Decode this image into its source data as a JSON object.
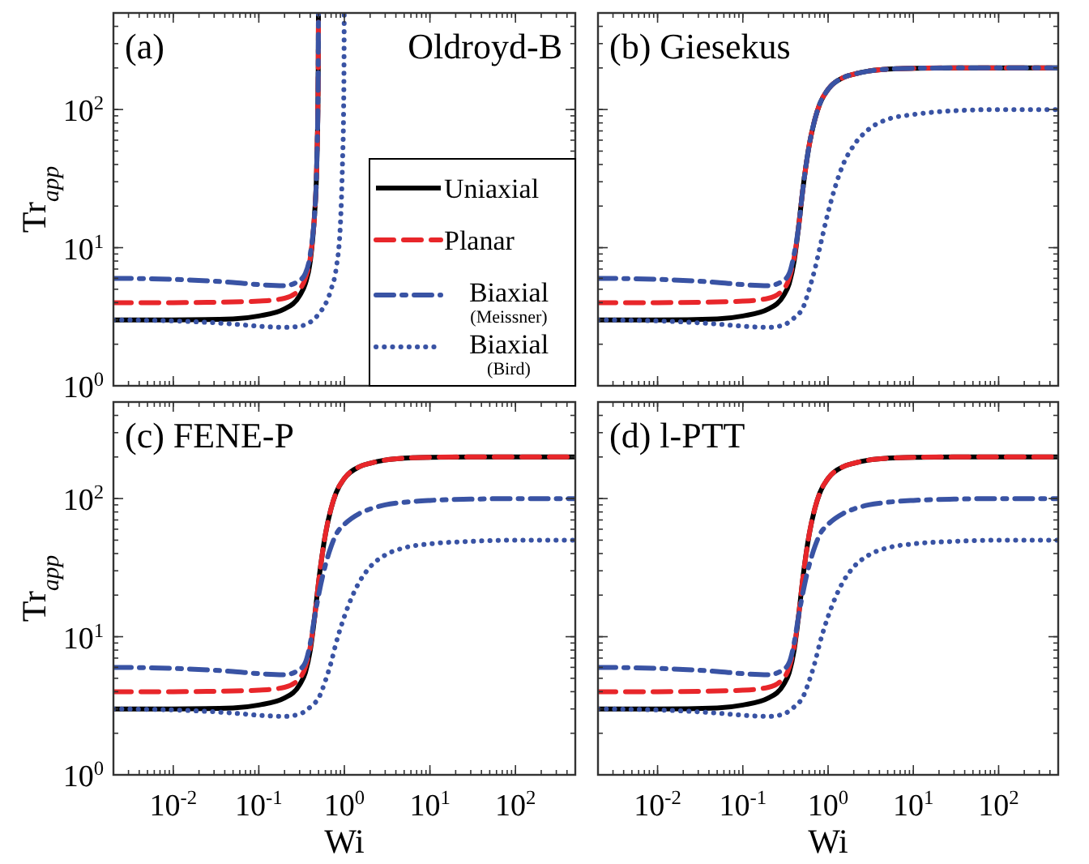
{
  "chart_data": [
    {
      "type": "line",
      "title": "(a)",
      "annotations": [
        "Oldroyd-B"
      ],
      "ylabel": "Tr$_{app}$",
      "log": "xy",
      "xlim": [
        0.002,
        500
      ],
      "ylim": [
        1,
        500
      ],
      "tick_labels": "y",
      "legend": "bottom right",
      "xticks": [
        {
          "value": 0.01,
          "label": null
        },
        {
          "value": 0.1,
          "label": null
        },
        {
          "value": 1,
          "label": null
        },
        {
          "value": 10,
          "label": null
        },
        {
          "value": 100,
          "label": null
        }
      ],
      "yticks": [
        {
          "value": 1,
          "label": "10$^{0}$"
        },
        {
          "value": 10,
          "label": "10$^{1}$"
        },
        {
          "value": 100,
          "label": "10$^{2}$"
        }
      ],
      "series": [
        {
          "name": "Uniaxial",
          "color": "#000000",
          "line_style": "solid",
          "x": [
            0.002,
            0.01,
            0.05,
            0.1,
            0.2,
            0.3,
            0.35,
            0.4,
            0.45,
            0.47,
            0.48,
            0.49,
            0.495,
            0.498
          ],
          "values": [
            3,
            3,
            3.05,
            3.2,
            3.6,
            4.5,
            5.5,
            8,
            18,
            30,
            50,
            100,
            200,
            500
          ]
        },
        {
          "name": "Planar",
          "color": "#e8262a",
          "line_style": "dashed",
          "x": [
            0.002,
            0.01,
            0.05,
            0.1,
            0.2,
            0.3,
            0.35,
            0.4,
            0.45,
            0.47,
            0.48,
            0.49,
            0.495,
            0.498
          ],
          "values": [
            4,
            4,
            4.05,
            4.1,
            4.3,
            5,
            6,
            8.5,
            18,
            30,
            50,
            100,
            200,
            500
          ]
        },
        {
          "name": "Biaxial (Meissner)",
          "color": "#3953a4",
          "line_style": "dashdot",
          "x": [
            0.002,
            0.01,
            0.05,
            0.1,
            0.2,
            0.3,
            0.35,
            0.4,
            0.45,
            0.47,
            0.48,
            0.49,
            0.495,
            0.498
          ],
          "values": [
            6,
            5.9,
            5.6,
            5.4,
            5.3,
            5.8,
            6.5,
            9,
            18,
            30,
            50,
            100,
            200,
            500
          ]
        },
        {
          "name": "Biaxial (Bird)",
          "color": "#3953a4",
          "line_style": "dotted",
          "x": [
            0.002,
            0.01,
            0.05,
            0.1,
            0.2,
            0.3,
            0.5,
            0.7,
            0.8,
            0.9,
            0.95,
            0.98,
            0.99,
            0.996
          ],
          "values": [
            3,
            2.95,
            2.8,
            2.7,
            2.65,
            2.7,
            3.3,
            5,
            7,
            15,
            40,
            100,
            200,
            500
          ]
        }
      ]
    },
    {
      "type": "line",
      "title": "(b) Giesekus",
      "log": "xy",
      "xlim": [
        0.002,
        500
      ],
      "ylim": [
        1,
        500
      ],
      "tick_labels": false,
      "xticks": [
        {
          "value": 0.01,
          "label": null
        },
        {
          "value": 0.1,
          "label": null
        },
        {
          "value": 1,
          "label": null
        },
        {
          "value": 10,
          "label": null
        },
        {
          "value": 100,
          "label": null
        }
      ],
      "yticks": [
        {
          "value": 1,
          "label": null
        },
        {
          "value": 10,
          "label": null
        },
        {
          "value": 100,
          "label": null
        }
      ],
      "series": [
        {
          "color": "#000000",
          "line_style": "solid",
          "x": [
            0.002,
            0.01,
            0.05,
            0.1,
            0.2,
            0.3,
            0.35,
            0.4,
            0.45,
            0.5,
            0.6,
            0.7,
            0.8,
            1,
            1.5,
            2,
            3,
            5,
            10,
            30,
            100,
            500
          ],
          "values": [
            3,
            3,
            3.05,
            3.2,
            3.6,
            4.5,
            5.5,
            8,
            14,
            25,
            55,
            85,
            110,
            140,
            170,
            180,
            190,
            196,
            199,
            200,
            200,
            200
          ]
        },
        {
          "color": "#e8262a",
          "line_style": "dashed",
          "x": [
            0.002,
            0.01,
            0.05,
            0.1,
            0.2,
            0.3,
            0.35,
            0.4,
            0.45,
            0.5,
            0.6,
            0.7,
            0.8,
            1,
            1.5,
            2,
            3,
            5,
            10,
            30,
            100,
            500
          ],
          "values": [
            4,
            4,
            4.05,
            4.1,
            4.3,
            5,
            6,
            8.5,
            14,
            25,
            55,
            85,
            110,
            140,
            170,
            180,
            190,
            196,
            199,
            200,
            200,
            200
          ]
        },
        {
          "color": "#3953a4",
          "line_style": "dashdot",
          "x": [
            0.002,
            0.01,
            0.05,
            0.1,
            0.2,
            0.3,
            0.35,
            0.4,
            0.45,
            0.5,
            0.6,
            0.7,
            0.8,
            1,
            1.5,
            2,
            3,
            5,
            10,
            30,
            100,
            500
          ],
          "values": [
            6,
            5.9,
            5.6,
            5.4,
            5.3,
            5.8,
            6.5,
            9,
            14,
            25,
            55,
            85,
            110,
            140,
            170,
            180,
            190,
            196,
            199,
            200,
            200,
            200
          ]
        },
        {
          "color": "#3953a4",
          "line_style": "dotted",
          "x": [
            0.002,
            0.01,
            0.05,
            0.1,
            0.2,
            0.3,
            0.35,
            0.4,
            0.45,
            0.5,
            0.6,
            0.7,
            0.8,
            1,
            1.5,
            2,
            3,
            5,
            10,
            30,
            100,
            500
          ],
          "values": [
            3,
            2.95,
            2.8,
            2.7,
            2.65,
            2.75,
            2.9,
            3.1,
            3.3,
            3.6,
            5,
            7,
            10,
            18,
            40,
            55,
            72,
            85,
            92,
            98,
            100,
            100
          ]
        }
      ]
    },
    {
      "type": "line",
      "title": "(c) FENE-P",
      "xlabel": "Wi",
      "ylabel": "Tr$_{app}$",
      "log": "xy",
      "xlim": [
        0.002,
        500
      ],
      "ylim": [
        1,
        500
      ],
      "xticks": [
        {
          "value": 0.01,
          "label": "10$^{-2}$"
        },
        {
          "value": 0.1,
          "label": "10$^{-1}$"
        },
        {
          "value": 1,
          "label": "10$^{0}$"
        },
        {
          "value": 10,
          "label": "10$^{1}$"
        },
        {
          "value": 100,
          "label": "10$^{2}$"
        }
      ],
      "yticks": [
        {
          "value": 1,
          "label": "10$^{0}$"
        },
        {
          "value": 10,
          "label": "10$^{1}$"
        },
        {
          "value": 100,
          "label": "10$^{2}$"
        }
      ],
      "series": [
        {
          "color": "#000000",
          "line_style": "solid",
          "x": [
            0.002,
            0.01,
            0.05,
            0.1,
            0.2,
            0.3,
            0.35,
            0.4,
            0.45,
            0.5,
            0.6,
            0.7,
            0.8,
            1,
            1.5,
            2,
            3,
            5,
            10,
            30,
            100,
            500
          ],
          "values": [
            3,
            3,
            3.05,
            3.2,
            3.6,
            4.5,
            5.5,
            8,
            14,
            25,
            55,
            85,
            110,
            140,
            170,
            180,
            190,
            196,
            199,
            200,
            200,
            200
          ]
        },
        {
          "color": "#e8262a",
          "line_style": "dashed",
          "x": [
            0.002,
            0.01,
            0.05,
            0.1,
            0.2,
            0.3,
            0.35,
            0.4,
            0.45,
            0.5,
            0.6,
            0.7,
            0.8,
            1,
            1.5,
            2,
            3,
            5,
            10,
            30,
            100,
            500
          ],
          "values": [
            4,
            4,
            4.05,
            4.1,
            4.3,
            5,
            6,
            8.5,
            14,
            25,
            55,
            85,
            110,
            140,
            170,
            180,
            190,
            196,
            199,
            200,
            200,
            200
          ]
        },
        {
          "color": "#3953a4",
          "line_style": "dashdot",
          "x": [
            0.002,
            0.01,
            0.05,
            0.1,
            0.2,
            0.3,
            0.35,
            0.4,
            0.45,
            0.5,
            0.6,
            0.7,
            0.8,
            1,
            1.5,
            2,
            3,
            5,
            10,
            30,
            100,
            500
          ],
          "values": [
            6,
            5.9,
            5.6,
            5.4,
            5.3,
            5.8,
            6.5,
            9,
            14,
            20,
            33,
            45,
            55,
            65,
            78,
            84,
            90,
            94,
            97,
            99,
            100,
            100
          ]
        },
        {
          "color": "#3953a4",
          "line_style": "dotted",
          "x": [
            0.002,
            0.01,
            0.05,
            0.1,
            0.2,
            0.3,
            0.35,
            0.4,
            0.45,
            0.5,
            0.6,
            0.7,
            0.8,
            1,
            1.5,
            2,
            3,
            5,
            10,
            30,
            100,
            500
          ],
          "values": [
            3,
            2.95,
            2.8,
            2.7,
            2.65,
            2.75,
            2.9,
            3.1,
            3.3,
            3.6,
            4.8,
            6.5,
            9,
            14,
            25,
            32,
            39,
            44,
            47,
            49,
            50,
            50
          ]
        }
      ]
    },
    {
      "type": "line",
      "title": "(d) l-PTT",
      "xlabel": "Wi",
      "log": "xy",
      "xlim": [
        0.002,
        500
      ],
      "ylim": [
        1,
        500
      ],
      "tick_labels": "x",
      "xticks": [
        {
          "value": 0.01,
          "label": "10$^{-2}$"
        },
        {
          "value": 0.1,
          "label": "10$^{-1}$"
        },
        {
          "value": 1,
          "label": "10$^{0}$"
        },
        {
          "value": 10,
          "label": "10$^{1}$"
        },
        {
          "value": 100,
          "label": "10$^{2}$"
        }
      ],
      "yticks": [
        {
          "value": 1,
          "label": null
        },
        {
          "value": 10,
          "label": null
        },
        {
          "value": 100,
          "label": null
        }
      ],
      "series": [
        {
          "color": "#000000",
          "line_style": "solid",
          "x": [
            0.002,
            0.01,
            0.05,
            0.1,
            0.2,
            0.3,
            0.35,
            0.4,
            0.45,
            0.5,
            0.6,
            0.7,
            0.8,
            1,
            1.5,
            2,
            3,
            5,
            10,
            30,
            100,
            500
          ],
          "values": [
            3,
            3,
            3.05,
            3.2,
            3.6,
            4.5,
            5.5,
            8,
            14,
            25,
            55,
            85,
            110,
            140,
            170,
            180,
            190,
            196,
            199,
            200,
            200,
            200
          ]
        },
        {
          "color": "#e8262a",
          "line_style": "dashed",
          "x": [
            0.002,
            0.01,
            0.05,
            0.1,
            0.2,
            0.3,
            0.35,
            0.4,
            0.45,
            0.5,
            0.6,
            0.7,
            0.8,
            1,
            1.5,
            2,
            3,
            5,
            10,
            30,
            100,
            500
          ],
          "values": [
            4,
            4,
            4.05,
            4.1,
            4.3,
            5,
            6,
            8.5,
            14,
            25,
            55,
            85,
            110,
            140,
            170,
            180,
            190,
            196,
            199,
            200,
            200,
            200
          ]
        },
        {
          "color": "#3953a4",
          "line_style": "dashdot",
          "x": [
            0.002,
            0.01,
            0.05,
            0.1,
            0.2,
            0.3,
            0.35,
            0.4,
            0.45,
            0.5,
            0.6,
            0.7,
            0.8,
            1,
            1.5,
            2,
            3,
            5,
            10,
            30,
            100,
            500
          ],
          "values": [
            6,
            5.9,
            5.6,
            5.4,
            5.3,
            5.8,
            6.5,
            9,
            14,
            20,
            33,
            45,
            55,
            65,
            78,
            84,
            90,
            94,
            97,
            99,
            100,
            100
          ]
        },
        {
          "color": "#3953a4",
          "line_style": "dotted",
          "x": [
            0.002,
            0.01,
            0.05,
            0.1,
            0.2,
            0.3,
            0.35,
            0.4,
            0.45,
            0.5,
            0.6,
            0.7,
            0.8,
            1,
            1.5,
            2,
            3,
            5,
            10,
            30,
            100,
            500
          ],
          "values": [
            3,
            2.95,
            2.8,
            2.7,
            2.65,
            2.75,
            2.9,
            3.1,
            3.3,
            3.6,
            4.8,
            6.5,
            9,
            14,
            25,
            32,
            39,
            44,
            47,
            49,
            50,
            50
          ]
        }
      ]
    }
  ]
}
